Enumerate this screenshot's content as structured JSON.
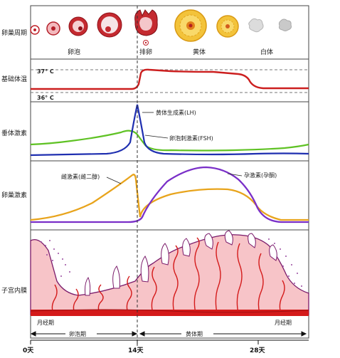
{
  "rows": {
    "ovary_cycle": "卵巢周期",
    "basal_temp": "基础体温",
    "pituitary": "垂体激素",
    "ovarian_hormone": "卵巢激素",
    "endometrium": "子宫内膜"
  },
  "phases_top": {
    "follicle": "卵泡",
    "ovulation": "排卵",
    "corpus_luteum": "黄体",
    "corpus_albicans": "白体"
  },
  "temps": {
    "high": "37° C",
    "low": "36° C"
  },
  "hormones": {
    "lh": "黄体生成素(LH)",
    "fsh": "卵泡刺激素(FSH)",
    "estrogen": "雌激素(雌二醇)",
    "progesterone": "孕激素(孕酮)"
  },
  "menses_left": "月经期",
  "menses_right": "月经期",
  "phase_bottom": {
    "follicular": "卵泡期",
    "luteal": "黄体期"
  },
  "days": {
    "d0": "0天",
    "d14": "14天",
    "d28": "28天"
  },
  "colors": {
    "temp": "#cc1f1f",
    "lh": "#1f2fb0",
    "fsh": "#5fc224",
    "estrogen": "#e8a41c",
    "progesterone": "#7a2fc8",
    "endometrium_fill": "#f7c4c8",
    "endometrium_edge": "#7a1a6a",
    "base_red": "#d41a1a"
  }
}
